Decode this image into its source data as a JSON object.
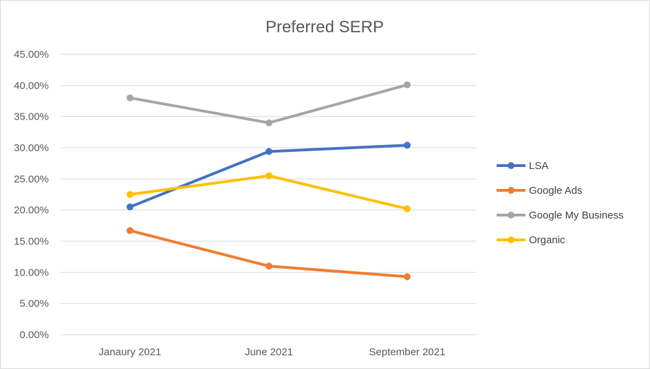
{
  "chart_data": {
    "type": "line",
    "title": "Preferred SERP",
    "categories": [
      "Janaury 2021",
      "June 2021",
      "September 2021"
    ],
    "ylim": [
      0,
      0.45
    ],
    "ytick_values": [
      0,
      0.05,
      0.1,
      0.15,
      0.2,
      0.25,
      0.3,
      0.35,
      0.4,
      0.45
    ],
    "ytick_labels": [
      "0.00%",
      "5.00%",
      "10.00%",
      "15.00%",
      "20.00%",
      "25.00%",
      "30.00%",
      "35.00%",
      "40.00%",
      "45.00%"
    ],
    "grid": true,
    "legend_position": "right",
    "series": [
      {
        "name": "LSA",
        "color": "#4472C4",
        "values": [
          0.205,
          0.294,
          0.304
        ]
      },
      {
        "name": "Google Ads",
        "color": "#ED7D31",
        "values": [
          0.167,
          0.11,
          0.093
        ]
      },
      {
        "name": "Google My Business",
        "color": "#A5A5A5",
        "values": [
          0.38,
          0.34,
          0.401
        ]
      },
      {
        "name": "Organic",
        "color": "#FFC000",
        "values": [
          0.225,
          0.255,
          0.202
        ]
      }
    ]
  }
}
